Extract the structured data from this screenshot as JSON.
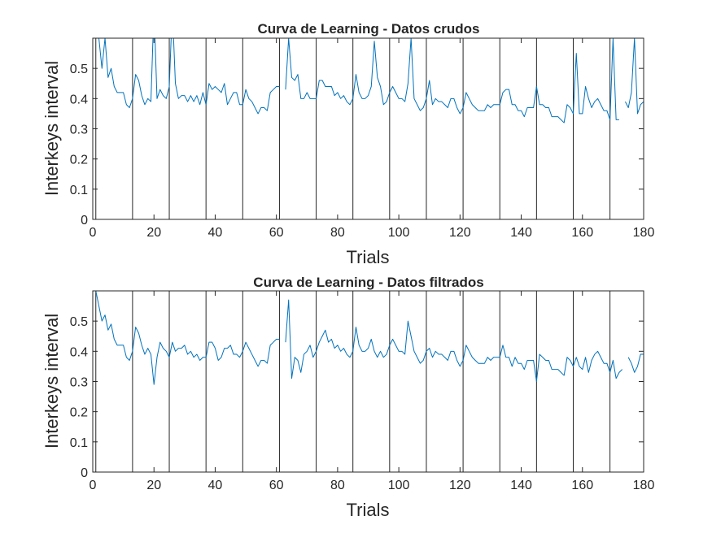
{
  "figure": {
    "background": "#ffffff",
    "line_color": "#0072BD",
    "separator_color": "#262626",
    "axis_color": "#262626"
  },
  "chart_data": [
    {
      "type": "line",
      "title": "Curva de Learning - Datos crudos",
      "xlabel": "Trials",
      "ylabel": "Interkeys interval",
      "xlim": [
        0,
        180
      ],
      "ylim": [
        0,
        0.6
      ],
      "xticks": [
        0,
        20,
        40,
        60,
        80,
        100,
        120,
        140,
        160,
        180
      ],
      "yticks": [
        0,
        0.1,
        0.2,
        0.3,
        0.4,
        0.5
      ],
      "ytick_labels": [
        "0",
        "0.1",
        "0.2",
        "0.3",
        "0.4",
        "0.5"
      ],
      "grid": false,
      "legend": "none",
      "block_separators": [
        1,
        13,
        25,
        37,
        49,
        61,
        73,
        85,
        97,
        109,
        121,
        133,
        145,
        157,
        169
      ],
      "series": [
        {
          "values": [
            0.6,
            0.6,
            0.5,
            0.6,
            0.47,
            0.5,
            0.44,
            0.42,
            0.42,
            0.42,
            0.38,
            0.37,
            0.4,
            0.48,
            0.46,
            0.41,
            0.38,
            0.4,
            0.39,
            0.7,
            0.4,
            0.43,
            0.41,
            0.4,
            0.44,
            0.7,
            0.45,
            0.4,
            0.41,
            0.41,
            0.39,
            0.41,
            0.39,
            0.41,
            0.38,
            0.42,
            0.38,
            0.45,
            0.43,
            0.44,
            0.43,
            0.42,
            0.45,
            0.38,
            0.4,
            0.42,
            0.42,
            0.38,
            0.38,
            0.43,
            0.4,
            0.39,
            0.37,
            0.35,
            0.37,
            0.37,
            0.36,
            0.42,
            0.43,
            0.44,
            0.44,
            null,
            0.43,
            0.6,
            0.47,
            0.46,
            0.48,
            0.4,
            0.4,
            0.42,
            0.4,
            0.4,
            0.4,
            0.46,
            0.46,
            0.44,
            0.44,
            0.44,
            0.41,
            0.42,
            0.4,
            0.41,
            0.39,
            0.38,
            0.4,
            0.48,
            0.42,
            0.4,
            0.4,
            0.41,
            0.44,
            0.59,
            0.47,
            0.44,
            0.38,
            0.39,
            0.42,
            0.44,
            0.42,
            0.4,
            0.4,
            0.39,
            0.45,
            0.6,
            0.4,
            0.38,
            0.36,
            0.37,
            0.4,
            0.46,
            0.38,
            0.4,
            0.39,
            0.39,
            0.38,
            0.37,
            0.4,
            0.4,
            0.37,
            0.35,
            0.37,
            0.42,
            0.4,
            0.38,
            0.37,
            0.36,
            0.36,
            0.36,
            0.38,
            0.37,
            0.38,
            0.38,
            0.38,
            0.42,
            0.43,
            0.43,
            0.38,
            0.38,
            0.36,
            0.36,
            0.34,
            0.37,
            0.37,
            0.37,
            0.44,
            0.38,
            0.38,
            0.37,
            0.37,
            0.34,
            0.34,
            0.34,
            0.33,
            0.32,
            0.38,
            0.37,
            0.35,
            0.55,
            0.35,
            0.35,
            0.44,
            0.4,
            0.37,
            0.39,
            0.4,
            0.38,
            0.36,
            0.36,
            0.33,
            0.6,
            0.33,
            0.33,
            null,
            0.39,
            0.37,
            0.42,
            0.6,
            0.35,
            0.38,
            0.39,
            0.38,
            0.36,
            0.39,
            0.37,
            0.35,
            0.38,
            0.36
          ]
        }
      ]
    },
    {
      "type": "line",
      "title": "Curva de Learning - Datos filtrados",
      "xlabel": "Trials",
      "ylabel": "Interkeys interval",
      "xlim": [
        0,
        180
      ],
      "ylim": [
        0,
        0.6
      ],
      "xticks": [
        0,
        20,
        40,
        60,
        80,
        100,
        120,
        140,
        160,
        180
      ],
      "yticks": [
        0,
        0.1,
        0.2,
        0.3,
        0.4,
        0.5
      ],
      "ytick_labels": [
        "0",
        "0.1",
        "0.2",
        "0.3",
        "0.4",
        "0.5"
      ],
      "grid": false,
      "legend": "none",
      "block_separators": [
        1,
        13,
        25,
        37,
        49,
        61,
        73,
        85,
        97,
        109,
        121,
        133,
        145,
        157,
        169
      ],
      "series": [
        {
          "values": [
            0.6,
            0.55,
            0.5,
            0.52,
            0.47,
            0.49,
            0.44,
            0.42,
            0.42,
            0.42,
            0.38,
            0.37,
            0.4,
            0.48,
            0.46,
            0.42,
            0.39,
            0.41,
            0.39,
            0.29,
            0.38,
            0.43,
            0.41,
            0.4,
            0.38,
            0.43,
            0.4,
            0.41,
            0.41,
            0.42,
            0.39,
            0.4,
            0.38,
            0.39,
            0.37,
            0.38,
            0.38,
            0.43,
            0.43,
            0.41,
            0.37,
            0.38,
            0.41,
            0.41,
            0.42,
            0.39,
            0.39,
            0.38,
            0.4,
            0.43,
            0.41,
            0.39,
            0.37,
            0.35,
            0.37,
            0.37,
            0.36,
            0.42,
            0.43,
            0.44,
            0.44,
            null,
            0.43,
            0.57,
            0.31,
            0.38,
            0.37,
            0.33,
            0.39,
            0.4,
            0.42,
            0.38,
            0.4,
            0.43,
            0.45,
            0.47,
            0.43,
            0.44,
            0.41,
            0.42,
            0.4,
            0.41,
            0.39,
            0.38,
            0.4,
            0.48,
            0.42,
            0.4,
            0.4,
            0.41,
            0.44,
            0.4,
            0.38,
            0.4,
            0.38,
            0.39,
            0.42,
            0.44,
            0.42,
            0.4,
            0.4,
            0.39,
            0.5,
            0.45,
            0.4,
            0.38,
            0.36,
            0.37,
            0.4,
            0.41,
            0.38,
            0.4,
            0.39,
            0.39,
            0.38,
            0.37,
            0.4,
            0.4,
            0.37,
            0.35,
            0.37,
            0.42,
            0.4,
            0.38,
            0.37,
            0.36,
            0.36,
            0.36,
            0.38,
            0.37,
            0.38,
            0.38,
            0.38,
            0.42,
            0.38,
            0.38,
            0.35,
            0.38,
            0.36,
            0.36,
            0.34,
            0.37,
            0.37,
            0.37,
            0.3,
            0.39,
            0.38,
            0.37,
            0.37,
            0.34,
            0.34,
            0.34,
            0.33,
            0.32,
            0.38,
            0.37,
            0.35,
            0.38,
            0.35,
            0.34,
            0.38,
            0.33,
            0.37,
            0.39,
            0.4,
            0.38,
            0.36,
            0.36,
            0.33,
            0.37,
            0.31,
            0.33,
            0.34,
            null,
            0.38,
            0.36,
            0.33,
            0.35,
            0.39,
            0.39,
            0.35,
            0.39,
            0.32,
            0.35,
            0.38,
            0.36
          ]
        }
      ]
    }
  ]
}
